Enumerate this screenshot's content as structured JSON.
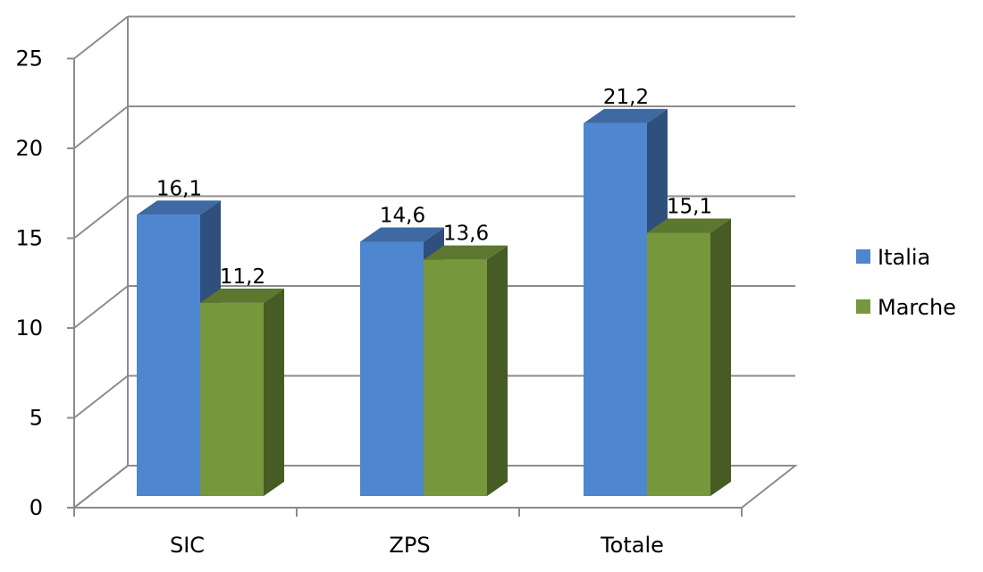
{
  "chart_data": {
    "type": "bar",
    "categories": [
      "SIC",
      "ZPS",
      "Totale"
    ],
    "series": [
      {
        "name": "Italia",
        "values": [
          16.1,
          14.6,
          21.2
        ],
        "labels": [
          "16,1",
          "14,6",
          "21,2"
        ],
        "color": "#4f86d0"
      },
      {
        "name": "Marche",
        "values": [
          11.2,
          13.6,
          15.1
        ],
        "labels": [
          "11,2",
          "13,6",
          "15,1"
        ],
        "color": "#77973d"
      }
    ],
    "yticks": [
      "0",
      "5",
      "10",
      "15",
      "20",
      "25"
    ],
    "ylim": [
      0,
      25
    ],
    "grid": true,
    "legend_position": "right",
    "style": "3d-clustered-column"
  }
}
